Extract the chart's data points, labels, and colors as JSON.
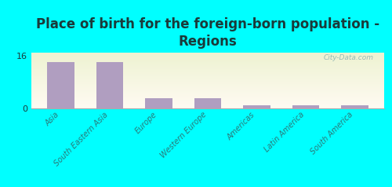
{
  "title": "Place of birth for the foreign-born population -\nRegions",
  "categories": [
    "Asia",
    "South Eastern Asia",
    "Europe",
    "Western Europe",
    "Americas",
    "Latin America",
    "South America"
  ],
  "values": [
    14,
    14,
    3,
    3,
    1,
    1,
    1
  ],
  "bar_color": "#b09ec0",
  "background_color": "#00ffff",
  "ylim": [
    0,
    17
  ],
  "yticks": [
    0,
    16
  ],
  "title_fontsize": 12,
  "title_color": "#1a3a3a",
  "tick_label_color": "#2a7a7a",
  "watermark": "City-Data.com",
  "watermark_color": "#8ab0b0"
}
